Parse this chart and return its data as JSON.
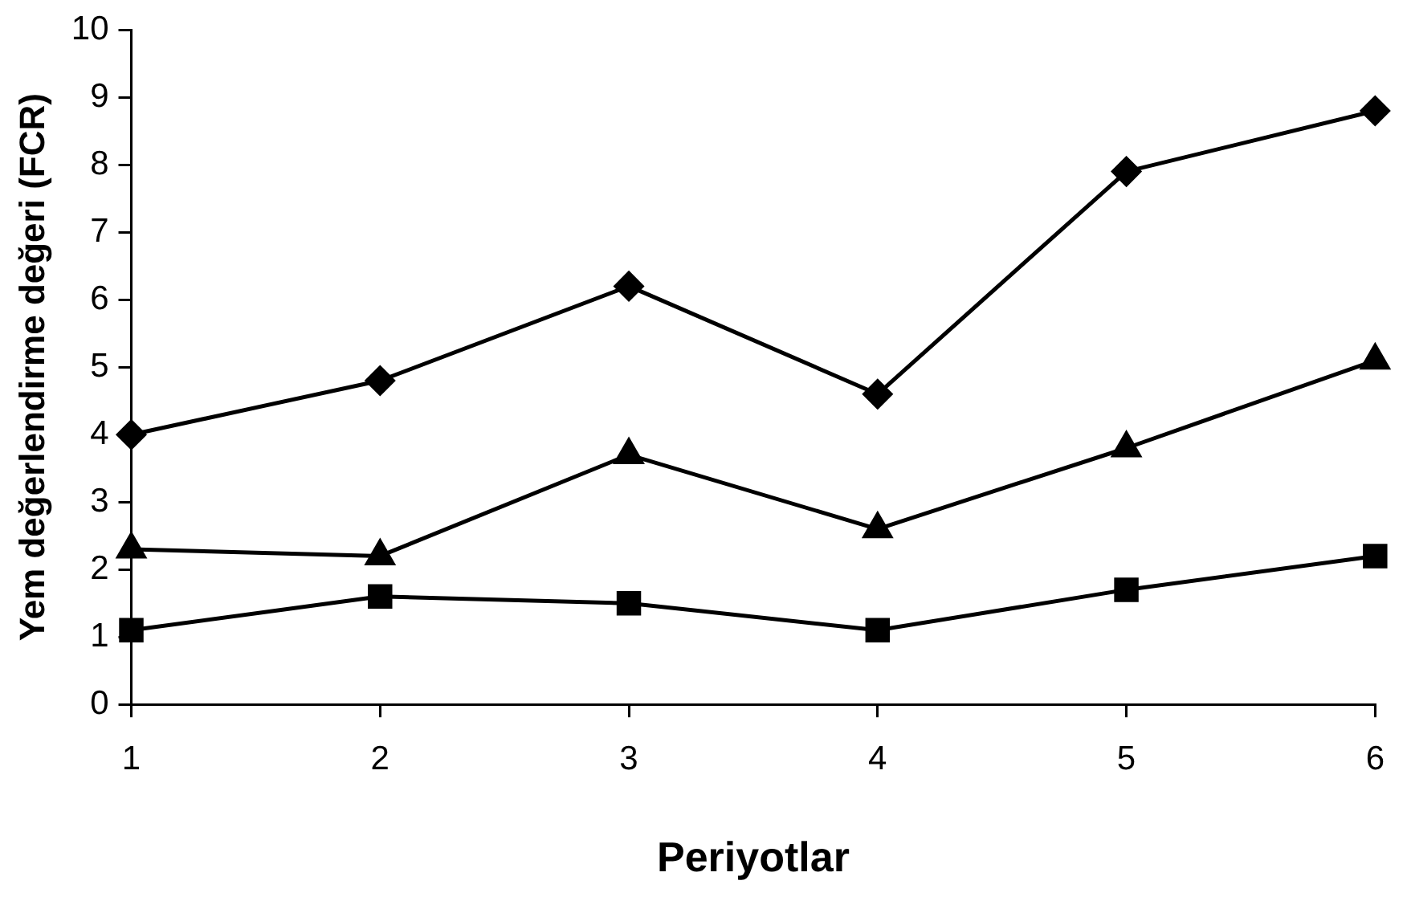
{
  "chart_data": {
    "type": "line",
    "xlabel": "Periyotlar",
    "ylabel": "Yem değerlendirme değeri (FCR)",
    "x": [
      1,
      2,
      3,
      4,
      5,
      6
    ],
    "series": [
      {
        "color": "#000000",
        "marker": "diamond",
        "values": [
          4.0,
          4.8,
          6.2,
          4.6,
          7.9,
          8.8
        ]
      },
      {
        "color": "#000000",
        "marker": "triangle",
        "values": [
          2.3,
          2.2,
          3.7,
          2.6,
          3.8,
          5.1
        ]
      },
      {
        "color": "#000000",
        "marker": "square",
        "values": [
          1.1,
          1.6,
          1.5,
          1.1,
          1.7,
          2.2
        ]
      }
    ],
    "xlim": [
      1,
      6
    ],
    "xticks": [
      1,
      2,
      3,
      4,
      5,
      6
    ],
    "ylim": [
      0,
      10
    ],
    "yticks": [
      0,
      1,
      2,
      3,
      4,
      5,
      6,
      7,
      8,
      9,
      10
    ],
    "grid": false,
    "legend": false,
    "line_style": "solid"
  }
}
